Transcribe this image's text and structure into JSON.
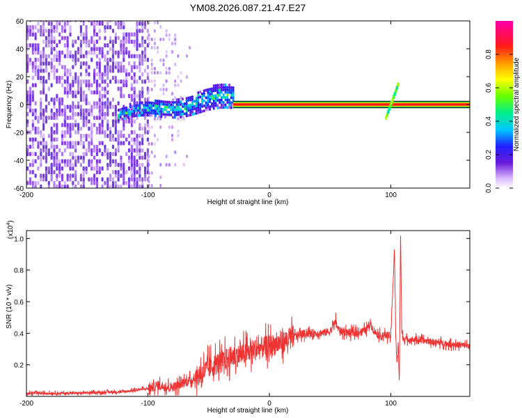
{
  "title": "YM08.2026.087.21.47.E27",
  "colors": {
    "snr_line": "#ee3333",
    "axis": "#000000",
    "spectrogram_low": "#6a1ad8",
    "spectrogram_high": "#ff1a1a"
  },
  "chart_data": [
    {
      "type": "heatmap",
      "title": "YM08.2026.087.21.47.E27",
      "xlabel": "Height of straight line (km)",
      "ylabel": "Frequency (Hz)",
      "xlim": [
        -200,
        165
      ],
      "ylim": [
        -60,
        60
      ],
      "xticks": [
        -200,
        -100,
        0,
        100
      ],
      "yticks": [
        -60,
        -40,
        -20,
        0,
        20,
        40,
        60
      ],
      "colorbar": {
        "label": "Normalized spectral amplitude",
        "range": [
          0,
          1
        ],
        "ticks": [
          "0.0",
          "0.2",
          "0.4",
          "0.6",
          "0.8"
        ],
        "colormap": "rainbow (violet→blue→cyan→green→yellow→red→magenta)"
      },
      "features": [
        {
          "description": "broadband low-amplitude noise",
          "x_range": [
            -200,
            -100
          ],
          "y_range": [
            -60,
            60
          ],
          "amplitude": 0.1
        },
        {
          "description": "scattered faint noise",
          "x_range": [
            -100,
            -65
          ],
          "y_range": [
            -60,
            60
          ],
          "amplitude": 0.05
        },
        {
          "description": "curved signal band",
          "x_range": [
            -125,
            -30
          ],
          "y_center_start": -8,
          "y_center_end": 5,
          "amplitude": 0.35
        },
        {
          "description": "narrow band near 0 Hz",
          "x_range": [
            -30,
            165
          ],
          "y_center": 0,
          "amplitude": 1.0
        },
        {
          "description": "transient feature",
          "x_range": [
            96,
            106
          ],
          "y_range": [
            -10,
            14
          ],
          "amplitude": 0.5
        }
      ]
    },
    {
      "type": "line",
      "xlabel": "Height of straight line (km)",
      "ylabel": "SNR (10 * v/v)",
      "y_multiplier_label": "(x10",
      "y_multiplier_exp": "4",
      "xlim": [
        -200,
        165
      ],
      "ylim": [
        0,
        1.05
      ],
      "xticks": [
        -200,
        -100,
        0,
        100
      ],
      "yticks": [
        0.2,
        0.4,
        0.6,
        0.8,
        1.0
      ],
      "series": [
        {
          "x": [
            -200,
            -180,
            -160,
            -140,
            -120,
            -110,
            -100,
            -95,
            -90,
            -85,
            -80,
            -75,
            -70,
            -65,
            -60,
            -55,
            -50,
            -45,
            -40,
            -35,
            -30,
            -25,
            -20,
            -15,
            -10,
            -5,
            0,
            5,
            10,
            15,
            20,
            25,
            30,
            40,
            50,
            55,
            56,
            60,
            70,
            80,
            83,
            85,
            88,
            92,
            96,
            100,
            103,
            104,
            105,
            106,
            107,
            108,
            109,
            110,
            115,
            120,
            130,
            140,
            150,
            165
          ],
          "y": [
            0.02,
            0.02,
            0.02,
            0.025,
            0.03,
            0.04,
            0.05,
            0.06,
            0.07,
            0.06,
            0.06,
            0.07,
            0.09,
            0.1,
            0.12,
            0.15,
            0.18,
            0.2,
            0.22,
            0.24,
            0.25,
            0.26,
            0.27,
            0.29,
            0.3,
            0.31,
            0.32,
            0.33,
            0.34,
            0.36,
            0.38,
            0.39,
            0.4,
            0.4,
            0.41,
            0.48,
            0.43,
            0.41,
            0.4,
            0.42,
            0.47,
            0.43,
            0.4,
            0.38,
            0.39,
            0.38,
            0.95,
            0.38,
            0.2,
            0.35,
            0.08,
            1.05,
            0.4,
            0.37,
            0.36,
            0.36,
            0.35,
            0.34,
            0.33,
            0.32
          ]
        }
      ]
    }
  ]
}
